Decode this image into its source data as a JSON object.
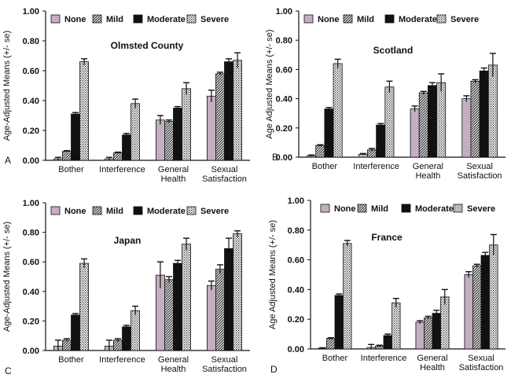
{
  "series_names": [
    "None",
    "Mild",
    "Moderate",
    "Severe"
  ],
  "series_colors": [
    "#c4aec2",
    "#ffffff",
    "#111111",
    "#ffffff"
  ],
  "series_patterns": [
    "solid",
    "diagonal",
    "solid",
    "dots"
  ],
  "chart_data": [
    {
      "type": "bar",
      "letter": "A",
      "title": "Olmsted County",
      "ylabel": "Age-Adjusted Means (+/- se)",
      "xlabel": "",
      "ylim": [
        0,
        1
      ],
      "yticks": [
        "0.00",
        "0.20",
        "0.40",
        "0.60",
        "0.80",
        "1.00"
      ],
      "categories": [
        "Bother",
        "Interference",
        "General Health",
        "Sexual Satisfaction"
      ],
      "series": [
        {
          "name": "None",
          "values": [
            0.01,
            0.01,
            0.27,
            0.43
          ],
          "errors": [
            0.01,
            0.01,
            0.03,
            0.04
          ]
        },
        {
          "name": "Mild",
          "values": [
            0.06,
            0.05,
            0.26,
            0.58
          ],
          "errors": [
            0.005,
            0.005,
            0.01,
            0.01
          ]
        },
        {
          "name": "Moderate",
          "values": [
            0.31,
            0.17,
            0.35,
            0.66
          ],
          "errors": [
            0.01,
            0.01,
            0.01,
            0.02
          ]
        },
        {
          "name": "Severe",
          "values": [
            0.66,
            0.38,
            0.48,
            0.67
          ],
          "errors": [
            0.02,
            0.03,
            0.04,
            0.05
          ]
        }
      ]
    },
    {
      "type": "bar",
      "letter": "B",
      "title": "Scotland",
      "ylabel": "Age Adjusted Means (+/- se)",
      "xlabel": "",
      "ylim": [
        0,
        1
      ],
      "yticks": [
        "0.00",
        "0.20",
        "0.40",
        "0.60",
        "0.80",
        "1.00"
      ],
      "categories": [
        "Bother",
        "Interference",
        "General Health",
        "Sexual Satisfaction"
      ],
      "series": [
        {
          "name": "None",
          "values": [
            0.01,
            0.02,
            0.33,
            0.4
          ],
          "errors": [
            0.005,
            0.005,
            0.02,
            0.02
          ]
        },
        {
          "name": "Mild",
          "values": [
            0.08,
            0.05,
            0.44,
            0.52
          ],
          "errors": [
            0.005,
            0.01,
            0.01,
            0.01
          ]
        },
        {
          "name": "Moderate",
          "values": [
            0.33,
            0.22,
            0.49,
            0.59
          ],
          "errors": [
            0.01,
            0.01,
            0.02,
            0.02
          ]
        },
        {
          "name": "Severe",
          "values": [
            0.64,
            0.48,
            0.51,
            0.63
          ],
          "errors": [
            0.03,
            0.04,
            0.06,
            0.08
          ]
        }
      ]
    },
    {
      "type": "bar",
      "letter": "C",
      "title": "Japan",
      "ylabel": "Age-Adjusted Means (+/- se)",
      "xlabel": "",
      "ylim": [
        0,
        1
      ],
      "yticks": [
        "0.00",
        "0.20",
        "0.40",
        "0.60",
        "0.80",
        "1.00"
      ],
      "categories": [
        "Bother",
        "Interference",
        "General Health",
        "Sexual Satisfaction"
      ],
      "series": [
        {
          "name": "None",
          "values": [
            0.03,
            0.03,
            0.51,
            0.44
          ],
          "errors": [
            0.04,
            0.04,
            0.09,
            0.03
          ]
        },
        {
          "name": "Mild",
          "values": [
            0.07,
            0.07,
            0.48,
            0.55
          ],
          "errors": [
            0.01,
            0.01,
            0.02,
            0.03
          ]
        },
        {
          "name": "Moderate",
          "values": [
            0.24,
            0.16,
            0.59,
            0.69
          ],
          "errors": [
            0.01,
            0.01,
            0.02,
            0.07
          ]
        },
        {
          "name": "Severe",
          "values": [
            0.59,
            0.27,
            0.72,
            0.79
          ],
          "errors": [
            0.03,
            0.03,
            0.04,
            0.02
          ]
        }
      ]
    },
    {
      "type": "bar",
      "letter": "D",
      "title": "France",
      "ylabel": "Age Adjusted Means (+/- se)",
      "xlabel": "",
      "ylim": [
        0,
        1
      ],
      "yticks": [
        "0.00",
        "0.20",
        "0.40",
        "0.60",
        "0.80",
        "1.00"
      ],
      "categories": [
        "Bother",
        "Interference",
        "General Health",
        "Sexual Satisfaction"
      ],
      "series": [
        {
          "name": "None",
          "values": [
            0.005,
            0.01,
            0.18,
            0.5
          ],
          "errors": [
            0.003,
            0.02,
            0.01,
            0.02
          ]
        },
        {
          "name": "Mild",
          "values": [
            0.07,
            0.02,
            0.21,
            0.56
          ],
          "errors": [
            0.005,
            0.005,
            0.01,
            0.01
          ]
        },
        {
          "name": "Moderate",
          "values": [
            0.36,
            0.09,
            0.24,
            0.63
          ],
          "errors": [
            0.01,
            0.01,
            0.02,
            0.02
          ]
        },
        {
          "name": "Severe",
          "values": [
            0.71,
            0.31,
            0.35,
            0.7
          ],
          "errors": [
            0.02,
            0.03,
            0.05,
            0.07
          ]
        }
      ]
    }
  ]
}
